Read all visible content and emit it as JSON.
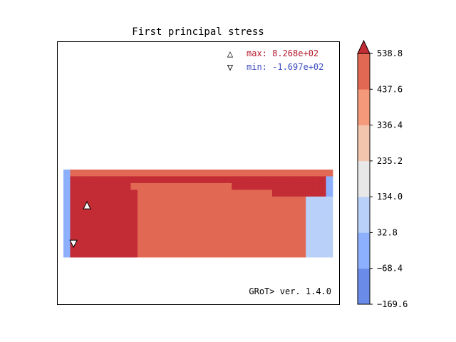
{
  "chart_data": {
    "type": "heatmap",
    "title": "First principal stress",
    "annotations": {
      "max_symbol": "△",
      "max_label": "max:  8.268e+02",
      "min_symbol": "▽",
      "min_label": "min: -1.697e+02",
      "footer": "GRoT> ver. 1.4.0"
    },
    "colorbar": {
      "ticks": [
        "538.8",
        "437.6",
        "336.4",
        "235.2",
        "134.0",
        "32.8",
        "−68.4",
        "−169.6"
      ],
      "levels": [
        -169.6,
        -68.4,
        32.8,
        134.0,
        235.2,
        336.4,
        437.6,
        538.8
      ],
      "colors": [
        "#6a8be8",
        "#8db0fe",
        "#b9d0f9",
        "#e8e8e8",
        "#f4c5ad",
        "#f49a7b",
        "#e16852",
        "#c32b35"
      ],
      "extend": "max"
    },
    "grid_cols": 40,
    "grid_rows": 13,
    "rows": [
      "1666666666666666666666666666666666666666",
      "1777777777777777777777777777777777777771",
      "1777777777666666666666666777777777777771",
      "1777777777766666666666666666666777777771",
      "1777777777766666666666666666666666662222",
      "1777777777766666666666666666666666662222",
      "1777777777766666666666666666666666662222",
      "1777777777766666666666666666666666662222",
      "1777777777766666666666666666666666662222",
      "1777777777766666666666666666666666662222",
      "1777777777766666666666666666666666662222",
      "1777777777766666666666666666666666662222",
      "1777777777766666666666666666666666662222"
    ],
    "markers": {
      "max": {
        "col": 3.5,
        "row": 5.3
      },
      "min": {
        "col": 1.5,
        "row": 11.0
      }
    }
  }
}
